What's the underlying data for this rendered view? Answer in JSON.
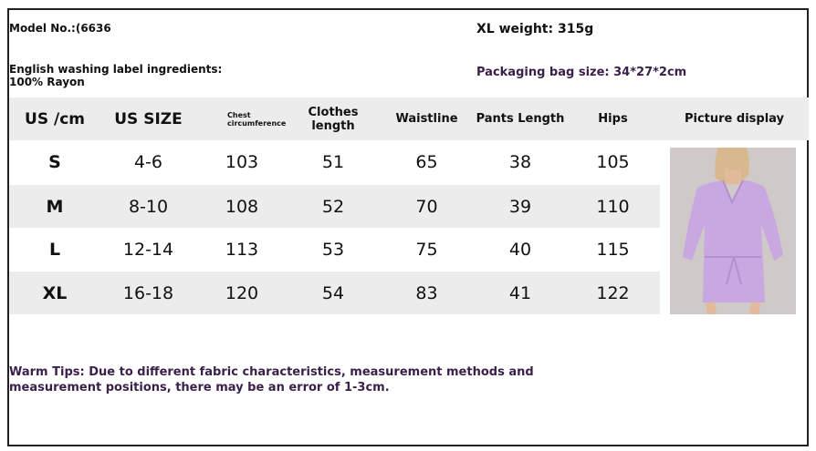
{
  "info": {
    "model": "Model No.:(6636",
    "xl_weight": "XL weight: 315g",
    "washing": "English washing label ingredients: 100% Rayon",
    "packaging": "Packaging bag size: 34*27*2cm"
  },
  "table": {
    "headers": [
      "US /cm",
      "US SIZE",
      "Chest circumference",
      "Clothes length",
      "Waistline",
      "Pants Length",
      "Hips",
      "Picture display"
    ],
    "rows": [
      [
        "S",
        "4-6",
        "103",
        "51",
        "65",
        "38",
        "105"
      ],
      [
        "M",
        "8-10",
        "108",
        "52",
        "70",
        "39",
        "110"
      ],
      [
        "L",
        "12-14",
        "113",
        "53",
        "75",
        "40",
        "115"
      ],
      [
        "XL",
        "16-18",
        "120",
        "54",
        "83",
        "41",
        "122"
      ]
    ]
  },
  "tips": "Warm Tips: Due to different fabric characteristics, measurement methods and measurement positions, there may be an error of 1-3cm.",
  "colors": {
    "shade": "#ececec",
    "tip_text": "#3a1f4a",
    "garment": "#c9a7e0"
  }
}
